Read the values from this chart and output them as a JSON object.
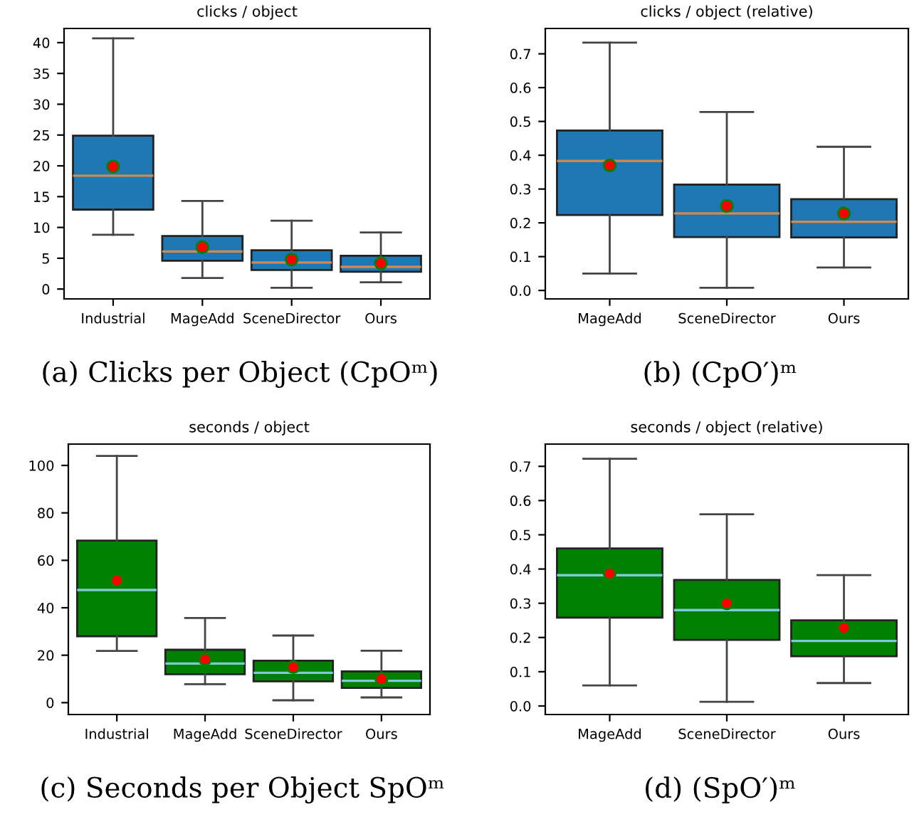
{
  "chart_data": [
    {
      "type": "box",
      "title": "clicks / object",
      "categories": [
        "Industrial",
        "MageAdd",
        "SceneDirector",
        "Ours"
      ],
      "ylim": [
        -1.6,
        42.3
      ],
      "yticks": [
        0,
        5,
        10,
        15,
        20,
        25,
        30,
        35,
        40
      ],
      "grid": false,
      "annotations": [
        "(a) Clicks per Object (CpOᵐ)"
      ],
      "series": [
        {
          "color": "#1f77b4",
          "boxes": [
            {
              "low": 8.8,
              "q1": 12.9,
              "median": 18.4,
              "q3": 24.9,
              "high": 40.7,
              "mean": 19.9
            },
            {
              "low": 1.8,
              "q1": 4.6,
              "median": 6.1,
              "q3": 8.6,
              "high": 14.3,
              "mean": 6.8
            },
            {
              "low": 0.2,
              "q1": 3.1,
              "median": 4.3,
              "q3": 6.3,
              "high": 11.1,
              "mean": 4.8
            },
            {
              "low": 1.1,
              "q1": 2.8,
              "median": 3.6,
              "q3": 5.4,
              "high": 9.2,
              "mean": 4.2
            }
          ]
        }
      ]
    },
    {
      "type": "box",
      "title": "clicks / object (relative)",
      "categories": [
        "MageAdd",
        "SceneDirector",
        "Ours"
      ],
      "ylim": [
        -0.025,
        0.775
      ],
      "yticks": [
        {
          "value": 0,
          "label": "0.0"
        },
        0.1,
        0.2,
        0.3,
        0.4,
        0.5,
        0.6,
        0.7
      ],
      "grid": false,
      "annotations": [
        "(b) (CpO′)ᵐ"
      ],
      "series": [
        {
          "color": "#1f77b4",
          "boxes": [
            {
              "low": 0.05,
              "q1": 0.223,
              "median": 0.383,
              "q3": 0.473,
              "high": 0.733,
              "mean": 0.37
            },
            {
              "low": 0.008,
              "q1": 0.158,
              "median": 0.228,
              "q3": 0.313,
              "high": 0.528,
              "mean": 0.25
            },
            {
              "low": 0.068,
              "q1": 0.157,
              "median": 0.203,
              "q3": 0.27,
              "high": 0.425,
              "mean": 0.228
            }
          ]
        }
      ]
    },
    {
      "type": "box",
      "title": "seconds / object",
      "categories": [
        "Industrial",
        "MageAdd",
        "SceneDirector",
        "Ours"
      ],
      "ylim": [
        -5,
        109
      ],
      "yticks": [
        0,
        20,
        40,
        60,
        80,
        100
      ],
      "grid": false,
      "annotations": [
        "(c) Seconds per Object SpOᵐ"
      ],
      "series": [
        {
          "color": "#008000",
          "boxes": [
            {
              "low": 21.8,
              "q1": 28,
              "median": 47.5,
              "q3": 68.3,
              "high": 104,
              "mean": 51.5
            },
            {
              "low": 7.8,
              "q1": 12,
              "median": 16.5,
              "q3": 22.3,
              "high": 35.7,
              "mean": 18.3
            },
            {
              "low": 1,
              "q1": 9,
              "median": 12.6,
              "q3": 17.7,
              "high": 28.3,
              "mean": 15
            },
            {
              "low": 2.2,
              "q1": 6.2,
              "median": 9.2,
              "q3": 13.2,
              "high": 21.9,
              "mean": 10
            }
          ]
        }
      ]
    },
    {
      "type": "box",
      "title": "seconds / object (relative)",
      "categories": [
        "MageAdd",
        "SceneDirector",
        "Ours"
      ],
      "ylim": [
        -0.025,
        0.765
      ],
      "yticks": [
        {
          "value": 0,
          "label": "0.0"
        },
        0.1,
        0.2,
        0.3,
        0.4,
        0.5,
        0.6,
        0.7
      ],
      "grid": false,
      "annotations": [
        "(d) (SpO′)ᵐ"
      ],
      "series": [
        {
          "color": "#008000",
          "boxes": [
            {
              "low": 0.06,
              "q1": 0.258,
              "median": 0.382,
              "q3": 0.46,
              "high": 0.722,
              "mean": 0.387
            },
            {
              "low": 0.012,
              "q1": 0.193,
              "median": 0.28,
              "q3": 0.368,
              "high": 0.56,
              "mean": 0.3
            },
            {
              "low": 0.067,
              "q1": 0.145,
              "median": 0.19,
              "q3": 0.25,
              "high": 0.382,
              "mean": 0.228
            }
          ]
        }
      ]
    }
  ]
}
